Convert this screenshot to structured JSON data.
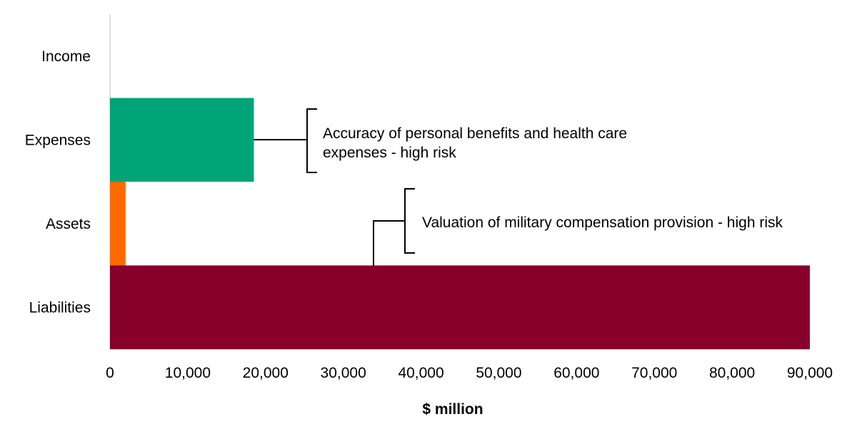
{
  "chart_data": {
    "type": "bar",
    "orientation": "horizontal",
    "categories": [
      "Income",
      "Expenses",
      "Assets",
      "Liabilities"
    ],
    "values": [
      0,
      18500,
      2000,
      90000
    ],
    "colors": [
      "#00a478",
      "#00a478",
      "#ff6a00",
      "#87002c"
    ],
    "xlabel": "$ million",
    "xlim": [
      0,
      90000
    ],
    "xticks": [
      {
        "value": 0,
        "label": "0"
      },
      {
        "value": 10000,
        "label": "10,000"
      },
      {
        "value": 20000,
        "label": "20,000"
      },
      {
        "value": 30000,
        "label": "30,000"
      },
      {
        "value": 40000,
        "label": "40,000"
      },
      {
        "value": 50000,
        "label": "50,000"
      },
      {
        "value": 60000,
        "label": "60,000"
      },
      {
        "value": 70000,
        "label": "70,000"
      },
      {
        "value": 80000,
        "label": "80,000"
      },
      {
        "value": 90000,
        "label": "90,000"
      }
    ],
    "grid": false,
    "annotations": [
      {
        "category": "Expenses",
        "lines": [
          "Accuracy of personal benefits and health care",
          "expenses - high risk"
        ]
      },
      {
        "category": "Liabilities",
        "lines": [
          "Valuation of military compensation provision - high risk"
        ]
      }
    ]
  }
}
